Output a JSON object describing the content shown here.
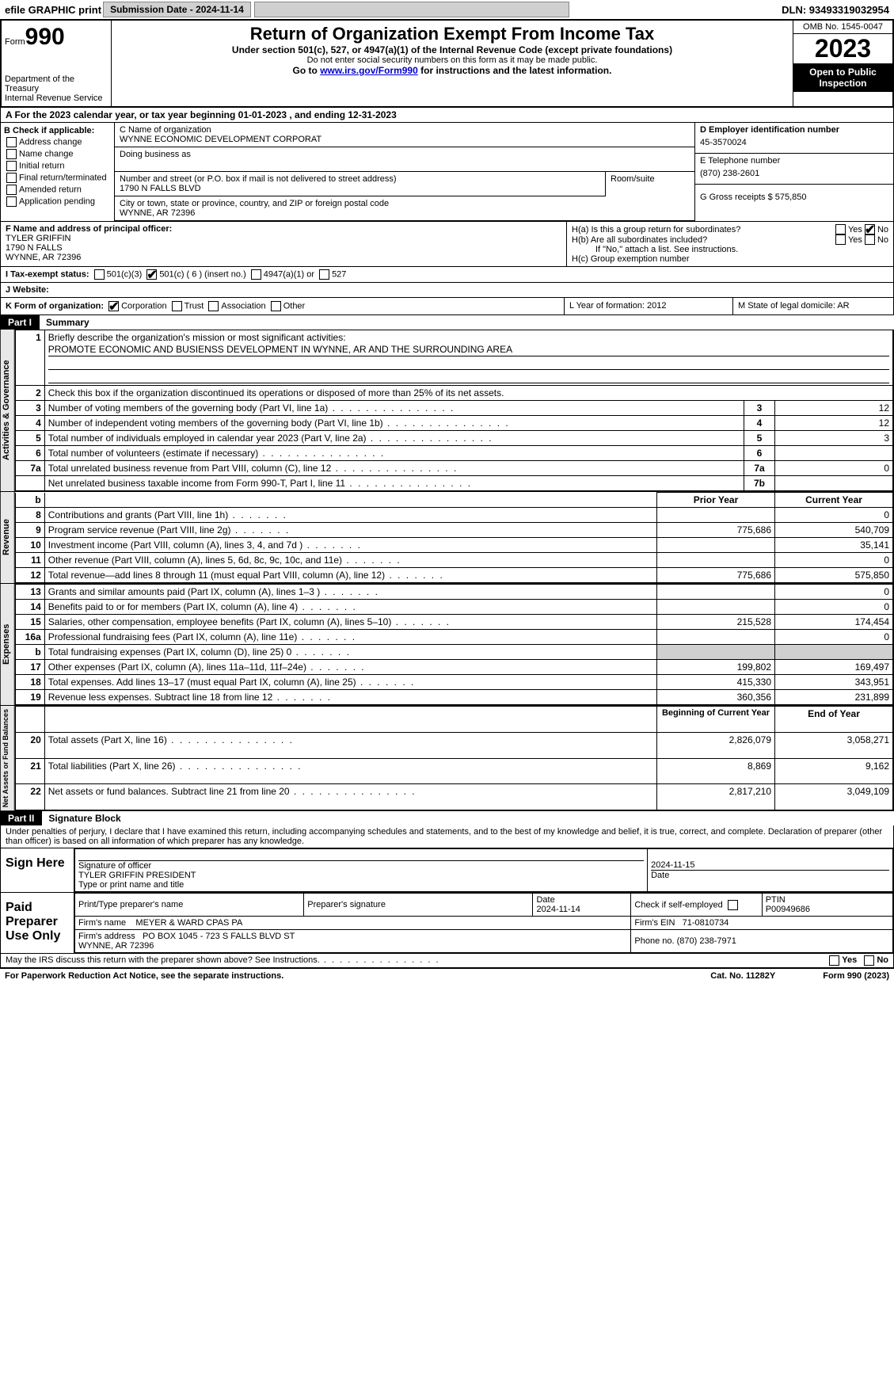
{
  "top_bar": {
    "efile": "efile GRAPHIC print",
    "submission_label": "Submission Date - 2024-11-14",
    "dln_label": "DLN: 93493319032954"
  },
  "header": {
    "form_label": "Form",
    "form_number": "990",
    "dept": "Department of the Treasury\nInternal Revenue Service",
    "title": "Return of Organization Exempt From Income Tax",
    "subtitle": "Under section 501(c), 527, or 4947(a)(1) of the Internal Revenue Code (except private foundations)",
    "note1": "Do not enter social security numbers on this form as it may be made public.",
    "note2_pre": "Go to ",
    "note2_link": "www.irs.gov/Form990",
    "note2_post": " for instructions and the latest information.",
    "omb": "OMB No. 1545-0047",
    "year": "2023",
    "open": "Open to Public Inspection"
  },
  "line_a": "A  For the 2023 calendar year, or tax year beginning 01-01-2023   , and ending 12-31-2023",
  "box_b": {
    "header": "B Check if applicable:",
    "items": [
      "Address change",
      "Name change",
      "Initial return",
      "Final return/terminated",
      "Amended return",
      "Application pending"
    ]
  },
  "box_c": {
    "name_label": "C Name of organization",
    "name": "WYNNE ECONOMIC DEVELOPMENT CORPORAT",
    "dba_label": "Doing business as",
    "dba": "",
    "street_label": "Number and street (or P.O. box if mail is not delivered to street address)",
    "street": "1790 N FALLS BLVD",
    "room_label": "Room/suite",
    "city_label": "City or town, state or province, country, and ZIP or foreign postal code",
    "city": "WYNNE, AR  72396"
  },
  "box_d": {
    "ein_label": "D Employer identification number",
    "ein": "45-3570024",
    "phone_label": "E Telephone number",
    "phone": "(870) 238-2601",
    "receipts_label": "G Gross receipts $ 575,850"
  },
  "box_f": {
    "label": "F  Name and address of principal officer:",
    "name": "TYLER GRIFFIN",
    "addr1": "1790 N FALLS",
    "addr2": "WYNNE, AR  72396"
  },
  "box_h": {
    "ha": "H(a)  Is this a group return for subordinates?",
    "hb": "H(b)  Are all subordinates included?",
    "hb_note": "If \"No,\" attach a list. See instructions.",
    "hc": "H(c)  Group exemption number",
    "yes": "Yes",
    "no": "No"
  },
  "row_i": {
    "label": "I   Tax-exempt status:",
    "opt1": "501(c)(3)",
    "opt2": "501(c) ( 6 ) (insert no.)",
    "opt3": "4947(a)(1) or",
    "opt4": "527"
  },
  "row_j": {
    "label": "J   Website:",
    "value": ""
  },
  "row_k": {
    "label": "K Form of organization:",
    "corp": "Corporation",
    "trust": "Trust",
    "assoc": "Association",
    "other": "Other",
    "l_label": "L Year of formation: 2012",
    "m_label": "M State of legal domicile: AR"
  },
  "part1": {
    "label": "Part I",
    "title": "Summary",
    "side_gov": "Activities & Governance",
    "side_rev": "Revenue",
    "side_exp": "Expenses",
    "side_net": "Net Assets or Fund Balances",
    "line1_label": "Briefly describe the organization's mission or most significant activities:",
    "line1": "PROMOTE ECONOMIC AND BUSIENSS DEVELOPMENT IN WYNNE, AR AND THE SURROUNDING AREA",
    "line2": "Check this box      if the organization discontinued its operations or disposed of more than 25% of its net assets.",
    "rows_gov": [
      {
        "n": "3",
        "t": "Number of voting members of the governing body (Part VI, line 1a)",
        "i": "3",
        "v": "12"
      },
      {
        "n": "4",
        "t": "Number of independent voting members of the governing body (Part VI, line 1b)",
        "i": "4",
        "v": "12"
      },
      {
        "n": "5",
        "t": "Total number of individuals employed in calendar year 2023 (Part V, line 2a)",
        "i": "5",
        "v": "3"
      },
      {
        "n": "6",
        "t": "Total number of volunteers (estimate if necessary)",
        "i": "6",
        "v": ""
      },
      {
        "n": "7a",
        "t": "Total unrelated business revenue from Part VIII, column (C), line 12",
        "i": "7a",
        "v": "0"
      },
      {
        "n": "",
        "t": "Net unrelated business taxable income from Form 990-T, Part I, line 11",
        "i": "7b",
        "v": ""
      }
    ],
    "hdr_b": "b",
    "hdr_prior": "Prior Year",
    "hdr_cur": "Current Year",
    "rows_rev": [
      {
        "n": "8",
        "t": "Contributions and grants (Part VIII, line 1h)",
        "p": "",
        "c": "0"
      },
      {
        "n": "9",
        "t": "Program service revenue (Part VIII, line 2g)",
        "p": "775,686",
        "c": "540,709"
      },
      {
        "n": "10",
        "t": "Investment income (Part VIII, column (A), lines 3, 4, and 7d )",
        "p": "",
        "c": "35,141"
      },
      {
        "n": "11",
        "t": "Other revenue (Part VIII, column (A), lines 5, 6d, 8c, 9c, 10c, and 11e)",
        "p": "",
        "c": "0"
      },
      {
        "n": "12",
        "t": "Total revenue—add lines 8 through 11 (must equal Part VIII, column (A), line 12)",
        "p": "775,686",
        "c": "575,850"
      }
    ],
    "rows_exp": [
      {
        "n": "13",
        "t": "Grants and similar amounts paid (Part IX, column (A), lines 1–3 )",
        "p": "",
        "c": "0"
      },
      {
        "n": "14",
        "t": "Benefits paid to or for members (Part IX, column (A), line 4)",
        "p": "",
        "c": "0"
      },
      {
        "n": "15",
        "t": "Salaries, other compensation, employee benefits (Part IX, column (A), lines 5–10)",
        "p": "215,528",
        "c": "174,454"
      },
      {
        "n": "16a",
        "t": "Professional fundraising fees (Part IX, column (A), line 11e)",
        "p": "",
        "c": "0"
      },
      {
        "n": "b",
        "t": "Total fundraising expenses (Part IX, column (D), line 25) 0",
        "p": "grey",
        "c": "grey"
      },
      {
        "n": "17",
        "t": "Other expenses (Part IX, column (A), lines 11a–11d, 11f–24e)",
        "p": "199,802",
        "c": "169,497"
      },
      {
        "n": "18",
        "t": "Total expenses. Add lines 13–17 (must equal Part IX, column (A), line 25)",
        "p": "415,330",
        "c": "343,951"
      },
      {
        "n": "19",
        "t": "Revenue less expenses. Subtract line 18 from line 12",
        "p": "360,356",
        "c": "231,899"
      }
    ],
    "hdr_begin": "Beginning of Current Year",
    "hdr_end": "End of Year",
    "rows_net": [
      {
        "n": "20",
        "t": "Total assets (Part X, line 16)",
        "p": "2,826,079",
        "c": "3,058,271"
      },
      {
        "n": "21",
        "t": "Total liabilities (Part X, line 26)",
        "p": "8,869",
        "c": "9,162"
      },
      {
        "n": "22",
        "t": "Net assets or fund balances. Subtract line 21 from line 20",
        "p": "2,817,210",
        "c": "3,049,109"
      }
    ]
  },
  "part2": {
    "label": "Part II",
    "title": "Signature Block",
    "decl": "Under penalties of perjury, I declare that I have examined this return, including accompanying schedules and statements, and to the best of my knowledge and belief, it is true, correct, and complete. Declaration of preparer (other than officer) is based on all information of which preparer has any knowledge.",
    "sign_here": "Sign Here",
    "sig_officer": "Signature of officer",
    "officer": "TYLER GRIFFIN  PRESIDENT",
    "type_label": "Type or print name and title",
    "date_label": "Date",
    "date": "2024-11-15",
    "paid_prep": "Paid Preparer Use Only",
    "prep_name_label": "Print/Type preparer's name",
    "prep_sig_label": "Preparer's signature",
    "prep_date_label": "Date",
    "prep_date": "2024-11-14",
    "check_self": "Check        if self-employed",
    "ptin_label": "PTIN",
    "ptin": "P00949686",
    "firm_name_label": "Firm's name",
    "firm_name": "MEYER & WARD CPAS PA",
    "firm_ein_label": "Firm's EIN",
    "firm_ein": "71-0810734",
    "firm_addr_label": "Firm's address",
    "firm_addr": "PO BOX 1045 - 723 S FALLS BLVD ST\nWYNNE, AR  72396",
    "firm_phone_label": "Phone no.",
    "firm_phone": "(870) 238-7971",
    "discuss": "May the IRS discuss this return with the preparer shown above? See Instructions."
  },
  "footer": {
    "pra": "For Paperwork Reduction Act Notice, see the separate instructions.",
    "cat": "Cat. No. 11282Y",
    "form": "Form 990 (2023)"
  }
}
